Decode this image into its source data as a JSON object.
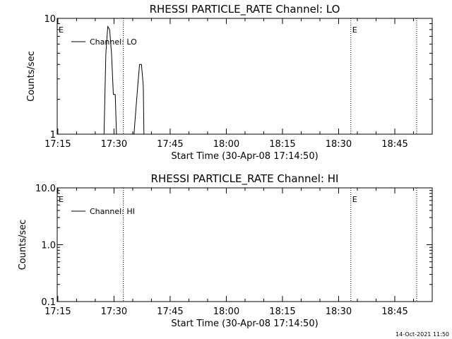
{
  "chart_data": [
    {
      "type": "line",
      "title": "RHESSI PARTICLE_RATE Channel: LO",
      "xlabel": "Start Time (30-Apr-08 17:14:50)",
      "ylabel": "Counts/sec",
      "yscale": "log",
      "ylim": [
        1,
        10
      ],
      "yticks": [
        {
          "value": 1,
          "label": "1"
        },
        {
          "value": 10,
          "label": "10"
        }
      ],
      "xlim": [
        "17:14:50",
        "18:55:00"
      ],
      "xticks": [
        "17:15",
        "17:30",
        "17:45",
        "18:00",
        "18:15",
        "18:30",
        "18:45"
      ],
      "grid": false,
      "legend_position": "top-left",
      "series": [
        {
          "name": "Channel: LO",
          "points": [
            [
              "17:27:20",
              1
            ],
            [
              "17:27:50",
              5.0
            ],
            [
              "17:28:20",
              8.5
            ],
            [
              "17:28:50",
              8.0
            ],
            [
              "17:29:20",
              5.0
            ],
            [
              "17:29:50",
              2.2
            ],
            [
              "17:30:20",
              2.2
            ],
            [
              "17:30:40",
              1
            ],
            [
              "17:35:20",
              1
            ],
            [
              "17:35:50",
              1.6
            ],
            [
              "17:36:20",
              2.6
            ],
            [
              "17:36:50",
              4.0
            ],
            [
              "17:37:20",
              4.0
            ],
            [
              "17:37:50",
              2.6
            ],
            [
              "17:38:00",
              1
            ]
          ]
        }
      ],
      "vlines": [
        "17:32:30",
        "18:33:15",
        "18:50:50"
      ],
      "markers": [
        {
          "text": "E",
          "x": "17:14:50"
        },
        {
          "text": "E",
          "x": "18:33:15"
        }
      ]
    },
    {
      "type": "line",
      "title": "RHESSI PARTICLE_RATE Channel: HI",
      "xlabel": "Start Time (30-Apr-08 17:14:50)",
      "ylabel": "Counts/sec",
      "yscale": "log",
      "ylim": [
        0.1,
        10
      ],
      "yticks": [
        {
          "value": 0.1,
          "label": "0.1"
        },
        {
          "value": 1,
          "label": "1.0"
        },
        {
          "value": 10,
          "label": "10.0"
        }
      ],
      "xlim": [
        "17:14:50",
        "18:55:00"
      ],
      "xticks": [
        "17:15",
        "17:30",
        "17:45",
        "18:00",
        "18:15",
        "18:30",
        "18:45"
      ],
      "grid": false,
      "legend_position": "top-left",
      "series": [
        {
          "name": "Channel: HI",
          "points": []
        }
      ],
      "vlines": [
        "17:32:30",
        "18:33:15",
        "18:50:50"
      ],
      "markers": [
        {
          "text": "E",
          "x": "17:14:50"
        },
        {
          "text": "E",
          "x": "18:33:15"
        }
      ]
    }
  ],
  "footer": {
    "timestamp": "14-Oct-2021 11:50"
  }
}
